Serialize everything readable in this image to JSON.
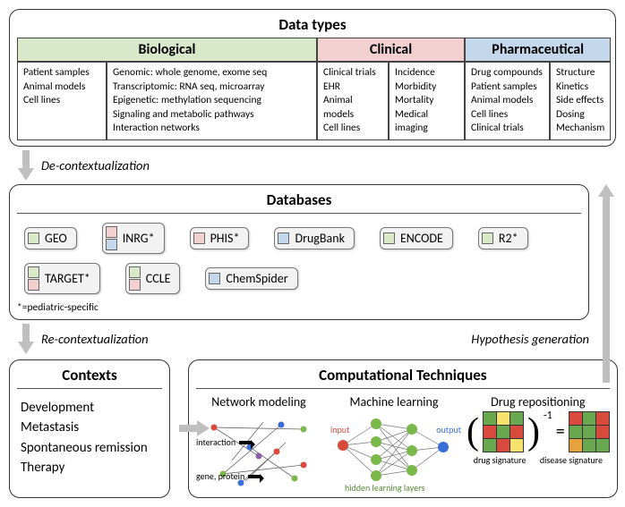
{
  "colors": {
    "biological": "#d8e8c8",
    "clinical": "#f3d0d0",
    "pharmaceutical": "#c5d7ea",
    "arrow": "#bfbfbf",
    "chip_bg": "#f2f2f2",
    "border": "#444444",
    "node_green": "#7ab84a",
    "node_blue": "#3a6fd8",
    "node_red": "#d94a3e",
    "node_purple": "#8a5ea8",
    "sig_green": "#6aa84f",
    "sig_red": "#d94a3e",
    "sig_yellow": "#f7e26b",
    "sig_orange": "#e6a23c"
  },
  "sections": {
    "data_types": {
      "title": "Data types",
      "biological": {
        "header": "Biological",
        "col1": [
          "Patient samples",
          "Animal models",
          "Cell lines"
        ],
        "col2": [
          "Genomic: whole genome, exome seq",
          "Transcriptomic: RNA seq, microarray",
          "Epigenetic: methylation sequencing",
          "Signaling and metabolic pathways",
          "Interaction networks"
        ]
      },
      "clinical": {
        "header": "Clinical",
        "col1": [
          "Clinical trials",
          "EHR",
          "Animal models",
          "Cell lines"
        ],
        "col2": [
          "Incidence",
          "Morbidity",
          "Mortality",
          "Medical imaging"
        ]
      },
      "pharmaceutical": {
        "header": "Pharmaceutical",
        "col1": [
          "Drug compounds",
          "Patient samples",
          "Animal models",
          "Cell lines",
          "Clinical trials"
        ],
        "col2": [
          "Structure",
          "Kinetics",
          "Side effects",
          "Dosing",
          "Mechanism"
        ]
      }
    },
    "flows": {
      "decontext": "De-contextualization",
      "recontext": "Re-contextualization",
      "hypgen": "Hypothesis generation"
    },
    "databases": {
      "title": "Databases",
      "note": "*=pediatric-specific",
      "items": [
        {
          "name": "GEO",
          "tags": [
            "biological"
          ]
        },
        {
          "name": "INRG*",
          "tags": [
            "clinical",
            "pharmaceutical"
          ]
        },
        {
          "name": "PHIS*",
          "tags": [
            "clinical"
          ]
        },
        {
          "name": "DrugBank",
          "tags": [
            "pharmaceutical"
          ]
        },
        {
          "name": "ENCODE",
          "tags": [
            "biological"
          ]
        },
        {
          "name": "R2*",
          "tags": [
            "biological"
          ]
        },
        {
          "name": "TARGET*",
          "tags": [
            "biological",
            "clinical"
          ]
        },
        {
          "name": "CCLE",
          "tags": [
            "biological",
            "clinical"
          ]
        },
        {
          "name": "ChemSpider",
          "tags": [
            "pharmaceutical"
          ]
        }
      ]
    },
    "contexts": {
      "title": "Contexts",
      "items": [
        "Development",
        "Metastasis",
        "Spontaneous remission",
        "Therapy"
      ]
    },
    "comp": {
      "title": "Computational Techniques",
      "network": {
        "title": "Network modeling",
        "label_interaction": "interaction",
        "label_gene": "gene, protein"
      },
      "ml": {
        "title": "Machine learning",
        "label_input": "input",
        "label_output": "output",
        "label_hidden": "hidden learning layers"
      },
      "repo": {
        "title": "Drug repositioning",
        "label_drug": "drug signature",
        "label_disease": "disease signature",
        "drug_sig": [
          "g",
          "y",
          "g",
          "r",
          "g",
          "r",
          "g",
          "r",
          "y"
        ],
        "disease_sig": [
          "r",
          "g",
          "r",
          "g",
          "g",
          "r",
          "o",
          "g",
          "g"
        ]
      }
    }
  }
}
